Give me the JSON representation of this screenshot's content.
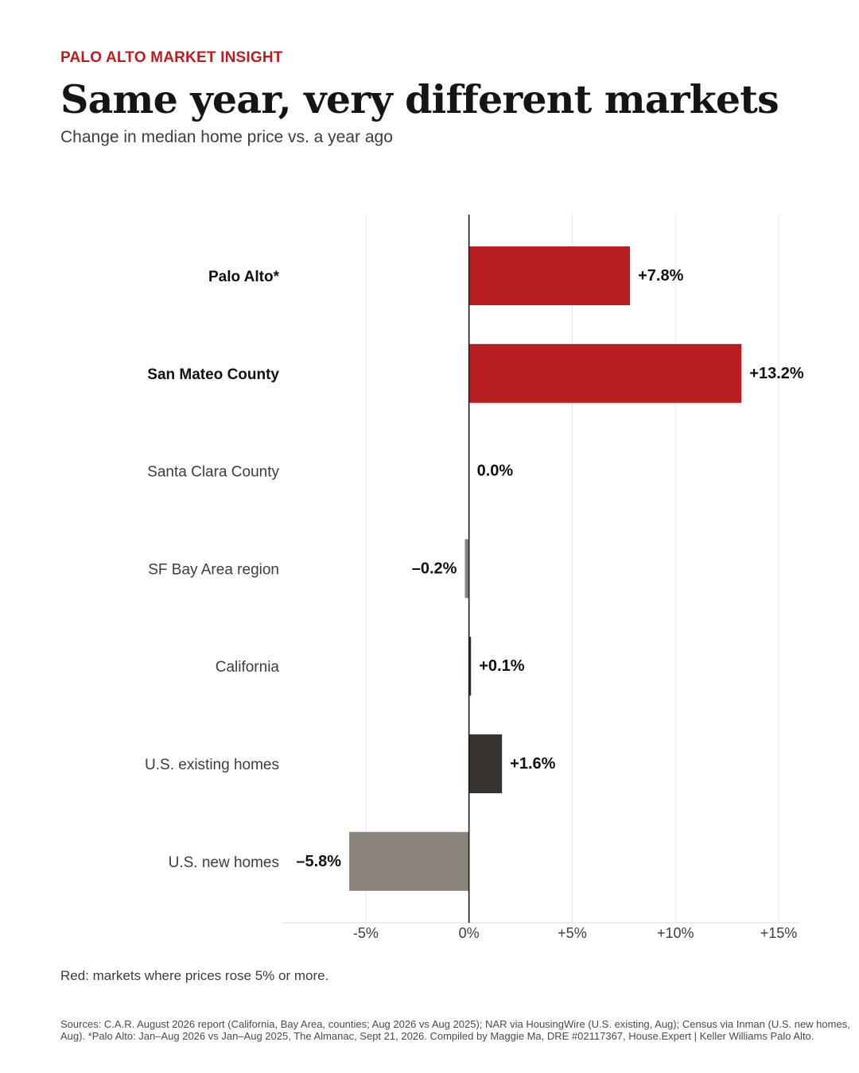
{
  "header": {
    "kicker": "PALO ALTO MARKET INSIGHT",
    "title": "Same year, very different markets",
    "subtitle": "Change in median home price vs. a year ago"
  },
  "footer": {
    "note": "Red: markets where prices rose 5% or more.",
    "sources": "Sources: C.A.R. August 2026 report (California, Bay Area, counties; Aug 2026 vs Aug 2025); NAR via HousingWire (U.S. existing, Aug); Census via Inman (U.S. new homes, Aug). *Palo Alto: Jan–Aug 2026 vs Jan–Aug 2025, The Almanac, Sept 21, 2026. Compiled by Maggie Ma, DRE #02117367, House.Expert | Keller Williams Palo Alto."
  },
  "colors": {
    "highlight": "#b71f22",
    "dark": "#38332f",
    "muted": "#8a837c",
    "title": "#171412"
  },
  "chart_data": {
    "type": "bar",
    "orientation": "horizontal",
    "categories": [
      "Palo Alto*",
      "San Mateo County",
      "Santa Clara County",
      "SF Bay Area region",
      "California",
      "U.S. existing homes",
      "U.S. new homes"
    ],
    "values": [
      7.8,
      13.2,
      0.0,
      -0.2,
      0.1,
      1.6,
      -5.8
    ],
    "value_labels": [
      "+7.8%",
      "+13.2%",
      "0.0%",
      "–0.2%",
      "+0.1%",
      "+1.6%",
      "–5.8%"
    ],
    "bold_categories": [
      true,
      true,
      false,
      false,
      false,
      false,
      false
    ],
    "bar_colors": [
      "#b71f22",
      "#b71f22",
      "#38332f",
      "#8a837c",
      "#38332f",
      "#38332f",
      "#8a837c"
    ],
    "xlim": [
      -9,
      16
    ],
    "xticks": [
      -5,
      0,
      5,
      10,
      15
    ],
    "xtick_labels": [
      "-5%",
      "0%",
      "+5%",
      "+10%",
      "+15%"
    ],
    "grid": true,
    "xlabel": "",
    "ylabel": ""
  }
}
